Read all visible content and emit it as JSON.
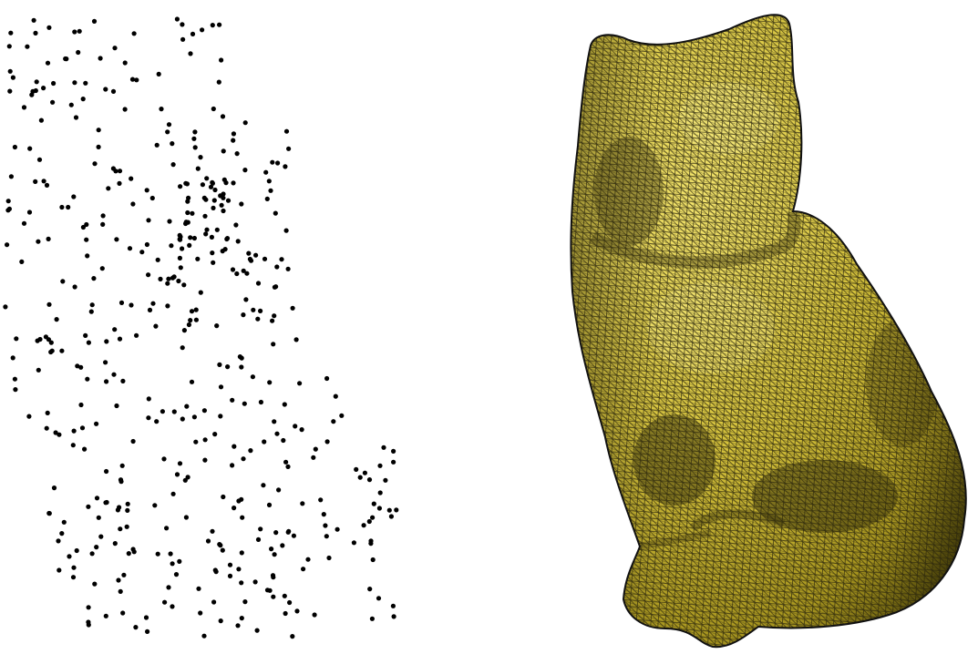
{
  "figure": {
    "panels": [
      {
        "id": "point-cloud",
        "subject": "cat",
        "style": "scattered-points"
      },
      {
        "id": "mesh",
        "subject": "cat",
        "style": "triangulated-surface"
      }
    ]
  },
  "colors": {
    "background": "#ffffff",
    "point": "#000000",
    "mesh_fill": "#d9c742",
    "mesh_highlight": "#f1e26b",
    "mesh_shadow": "#5e5410",
    "mesh_edge": "#1a1a10"
  }
}
